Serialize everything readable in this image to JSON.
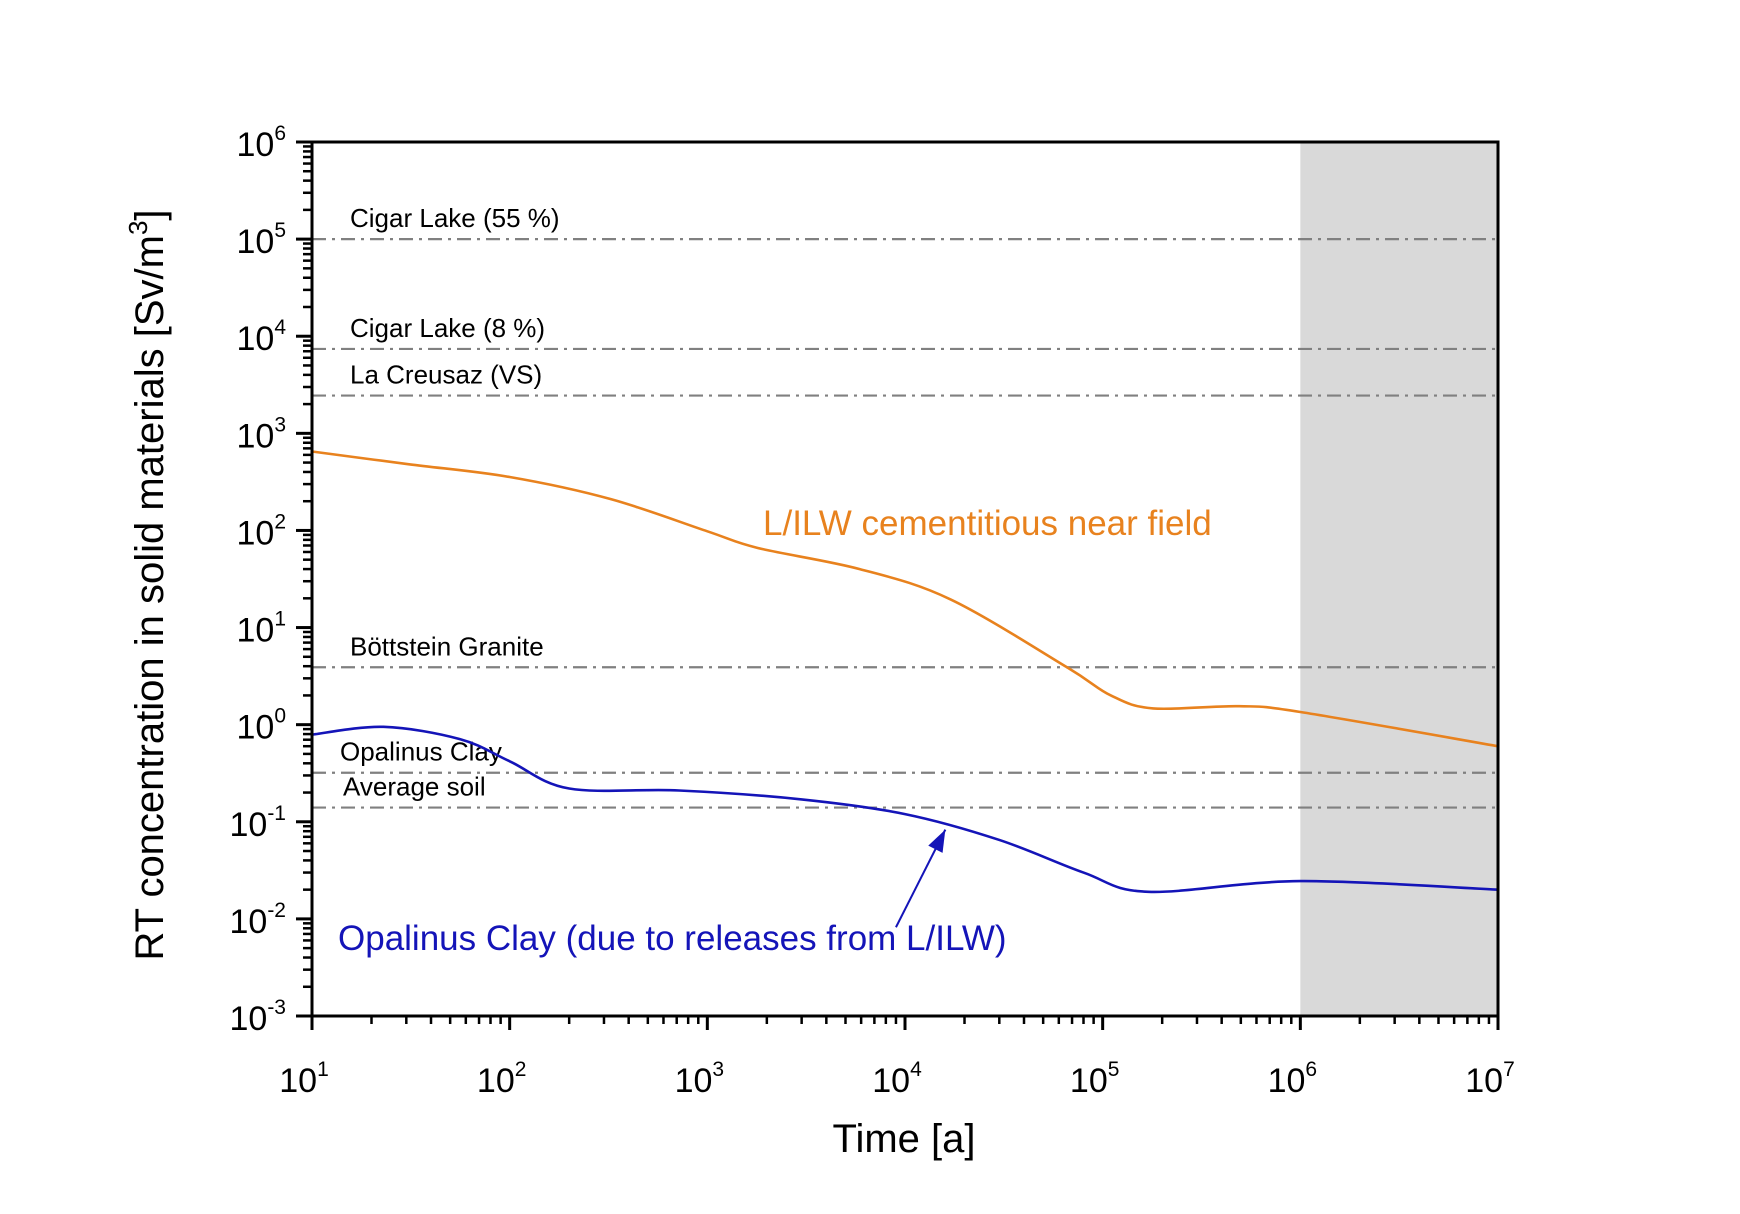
{
  "chart_data": {
    "type": "line",
    "title": "",
    "xlabel": "Time [a]",
    "ylabel_main": "RT concentration in solid materials [Sv/m",
    "ylabel_sup": "3",
    "ylabel_close": "]",
    "xscale": "log",
    "yscale": "log",
    "xlim": [
      10,
      10000000
    ],
    "ylim": [
      0.001,
      1000000
    ],
    "grid": false,
    "x_ticks": [
      {
        "base": "10",
        "exp": "1",
        "value": 10
      },
      {
        "base": "10",
        "exp": "2",
        "value": 100
      },
      {
        "base": "10",
        "exp": "3",
        "value": 1000
      },
      {
        "base": "10",
        "exp": "4",
        "value": 10000
      },
      {
        "base": "10",
        "exp": "5",
        "value": 100000
      },
      {
        "base": "10",
        "exp": "6",
        "value": 1000000
      },
      {
        "base": "10",
        "exp": "7",
        "value": 10000000
      }
    ],
    "y_ticks": [
      {
        "base": "10",
        "exp": "-3",
        "value": 0.001
      },
      {
        "base": "10",
        "exp": "-2",
        "value": 0.01
      },
      {
        "base": "10",
        "exp": "-1",
        "value": 0.1
      },
      {
        "base": "10",
        "exp": "0",
        "value": 1
      },
      {
        "base": "10",
        "exp": "1",
        "value": 10
      },
      {
        "base": "10",
        "exp": "2",
        "value": 100
      },
      {
        "base": "10",
        "exp": "3",
        "value": 1000
      },
      {
        "base": "10",
        "exp": "4",
        "value": 10000
      },
      {
        "base": "10",
        "exp": "5",
        "value": 100000
      },
      {
        "base": "10",
        "exp": "6",
        "value": 1000000
      }
    ],
    "shaded_region": {
      "x_from": 1000000,
      "x_to": 10000000,
      "color": "#d9d9d9"
    },
    "reference_lines": [
      {
        "label": "Cigar Lake (55 %)",
        "value": 100000
      },
      {
        "label": "Cigar Lake (8 %)",
        "value": 7400
      },
      {
        "label": "La Creusaz (VS)",
        "value": 2450
      },
      {
        "label": "Böttstein Granite",
        "value": 3.9
      },
      {
        "label": "Opalinus Clay",
        "value": 0.32
      },
      {
        "label": "Average soil",
        "value": 0.14
      }
    ],
    "reference_line_color": "#808080",
    "series": [
      {
        "name": "L/ILW cementitious near field",
        "color": "#e8821e",
        "x": [
          10,
          31,
          100,
          325,
          1000,
          1800,
          5900,
          17000,
          66000,
          110000,
          180000,
          490000,
          1000000,
          10000000
        ],
        "y": [
          650,
          480,
          355,
          210,
          98,
          66,
          40,
          19.5,
          3.9,
          2.0,
          1.47,
          1.55,
          1.35,
          0.6
        ]
      },
      {
        "name": "Opalinus Clay (due to releases from L/ILW)",
        "color": "#1414b8",
        "x": [
          10,
          23,
          56,
          100,
          200,
          720,
          3000,
          10000,
          30000,
          80000,
          170000,
          1000000,
          10000000
        ],
        "y": [
          0.79,
          0.95,
          0.71,
          0.42,
          0.22,
          0.21,
          0.17,
          0.12,
          0.065,
          0.03,
          0.019,
          0.0245,
          0.02
        ]
      }
    ],
    "annotations": [
      {
        "text": "L/ILW cementitious near field",
        "series": 0
      },
      {
        "text": "Opalinus Clay (due to releases from L/ILW)",
        "series": 1,
        "arrow_to": {
          "x": 16000,
          "y": 0.083
        },
        "arrow_from": {
          "x": 9000,
          "y": 0.0082
        }
      }
    ]
  }
}
